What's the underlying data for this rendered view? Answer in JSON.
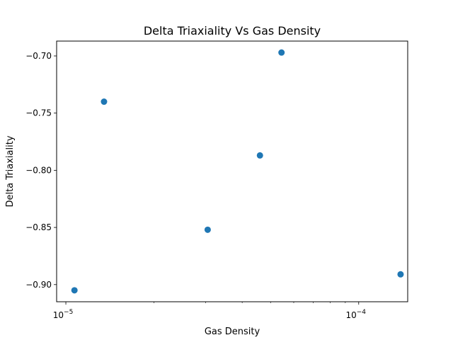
{
  "chart_data": {
    "type": "scatter",
    "title": "Delta Triaxiality Vs Gas Density",
    "xlabel": "Gas Density",
    "ylabel": "Delta Triaxiality",
    "xscale": "log",
    "xlim": [
      9.3e-06,
      0.000147
    ],
    "ylim": [
      -0.915,
      -0.687
    ],
    "x_ticks": [
      {
        "value": 1e-05,
        "base": "10",
        "exp": "−5"
      },
      {
        "value": 0.0001,
        "base": "10",
        "exp": "−4"
      }
    ],
    "y_ticks": [
      {
        "value": -0.7,
        "label": "−0.70"
      },
      {
        "value": -0.75,
        "label": "−0.75"
      },
      {
        "value": -0.8,
        "label": "−0.80"
      },
      {
        "value": -0.85,
        "label": "−0.85"
      },
      {
        "value": -0.9,
        "label": "−0.90"
      }
    ],
    "points": [
      {
        "x": 1.07e-05,
        "y": -0.905
      },
      {
        "x": 1.35e-05,
        "y": -0.74
      },
      {
        "x": 3.05e-05,
        "y": -0.852
      },
      {
        "x": 4.6e-05,
        "y": -0.787
      },
      {
        "x": 5.45e-05,
        "y": -0.697
      },
      {
        "x": 0.000139,
        "y": -0.891
      }
    ],
    "marker_color": "#1f77b4",
    "grid": false,
    "legend": false
  }
}
